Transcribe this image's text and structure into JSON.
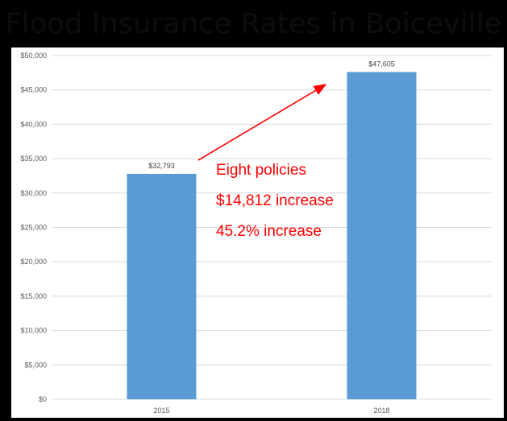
{
  "title": "Flood Insurance Rates in Boiceville",
  "colors": {
    "bar": "#5b9bd5",
    "grid": "#d9d9d9",
    "axis_text": "#595959",
    "annotation": "#ff0000",
    "background": "#000000",
    "plot_background": "#ffffff"
  },
  "chart_data": {
    "type": "bar",
    "title": "Flood Insurance Rates in Boiceville",
    "categories": [
      "2015",
      "2018"
    ],
    "values": [
      32793,
      47605
    ],
    "data_labels": [
      "$32,793",
      "$47,605"
    ],
    "xlabel": "",
    "ylabel": "",
    "ylim": [
      0,
      50000
    ],
    "yticks": [
      0,
      5000,
      10000,
      15000,
      20000,
      25000,
      30000,
      35000,
      40000,
      45000,
      50000
    ],
    "ytick_labels": [
      "$0",
      "$5,000",
      "$10,000",
      "$15,000",
      "$20,000",
      "$25,000",
      "$30,000",
      "$35,000",
      "$40,000",
      "$45,000",
      "$50,000"
    ],
    "grid": true,
    "legend": "none",
    "annotations": [
      "Eight policies",
      "$14,812 increase",
      "45.2% increase"
    ]
  }
}
